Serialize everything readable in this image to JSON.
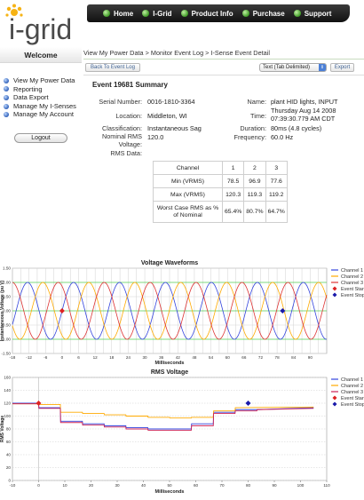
{
  "logo": {
    "text": "i-grid"
  },
  "nav": [
    "Home",
    "I-Grid",
    "Product Info",
    "Purchase",
    "Support"
  ],
  "sidebar": {
    "welcome": "Welcome",
    "items": [
      "View My Power Data",
      "Reporting",
      "Data Export",
      "Manage My I-Senses",
      "Manage My Account"
    ],
    "logout": "Logout"
  },
  "breadcrumb": "View My Power Data > Monitor Event Log > I-Sense Event Detail",
  "toolbar": {
    "back": "Back To Event Log",
    "format": "Text (Tab Delimited)",
    "export": "Export"
  },
  "summary": {
    "title": "Event 19681 Summary",
    "serial_label": "Serial Number:",
    "serial": "0016-1810-3364",
    "location_label": "Location:",
    "location": "Middleton, WI",
    "class_label": "Classification:",
    "classification": "Instantaneous Sag",
    "voltage_label": "Nominal RMS Voltage:",
    "voltage": "120.0",
    "name_label": "Name:",
    "name": "plant HID lights, INPUT",
    "time_label": "Time:",
    "time1": "Thursday Aug 14 2008",
    "time2": "07:39:30.779 AM CDT",
    "duration_label": "Duration:",
    "duration": "80ms (4.8 cycles)",
    "freq_label": "Frequency:",
    "frequency": "60.0 Hz",
    "rms_label": "RMS Data:"
  },
  "rms_table": {
    "header": [
      "Channel",
      "1",
      "2",
      "3"
    ],
    "rows": [
      [
        "Min (VRMS)",
        "78.5",
        "96.9",
        "77.6"
      ],
      [
        "Max (VRMS)",
        "120.3",
        "119.3",
        "119.2"
      ],
      [
        "Worst Case RMS as % of Nominal",
        "65.4%",
        "80.7%",
        "64.7%"
      ]
    ]
  },
  "chart_data": [
    {
      "type": "line",
      "title": "Voltage Waveforms",
      "xlabel": "Milliseconds",
      "ylabel": "Instantaneous Voltage (pu V)",
      "xlim": [
        -18,
        96
      ],
      "ylim": [
        -1.5,
        1.5
      ],
      "xticks": [
        -18,
        -12,
        -6,
        0,
        6,
        12,
        18,
        24,
        30,
        36,
        42,
        48,
        54,
        60,
        66,
        72,
        78,
        84,
        90
      ],
      "yticks": [
        "1.50",
        "1.00",
        "0.50",
        "0.00",
        "-0.50",
        "-1.00",
        "-1.50"
      ],
      "legend": [
        "Channel 1",
        "Channel 2",
        "Channel 3",
        "Event Start",
        "Event Stop"
      ],
      "colors": {
        "ch1": "#3344dd",
        "ch2": "#ffaa00",
        "ch3": "#dd3333",
        "start": "#dd2222",
        "stop": "#1a1aaa"
      },
      "frequency_hz": 60,
      "amplitude_pu": 1.0,
      "event_start": {
        "x": 0,
        "y": 0
      },
      "event_stop": {
        "x": 80,
        "y": 0
      }
    },
    {
      "type": "line",
      "title": "RMS Voltage",
      "xlabel": "Milliseconds",
      "ylabel": "RMS Voltage",
      "xlim": [
        -10,
        110
      ],
      "ylim": [
        0,
        160
      ],
      "xticks": [
        -10,
        0,
        10,
        20,
        30,
        40,
        50,
        60,
        70,
        80,
        90,
        100,
        110
      ],
      "yticks": [
        160,
        140,
        120,
        100,
        80,
        60,
        40,
        20,
        0
      ],
      "legend": [
        "Channel 1",
        "Channel 2",
        "Channel 3",
        "Event Start",
        "Event Stop"
      ],
      "series": [
        {
          "name": "Channel 1",
          "x": [
            -10,
            0,
            0.1,
            8.3,
            8.4,
            16.7,
            16.8,
            25,
            25.1,
            33.3,
            33.4,
            41.7,
            41.8,
            50,
            50.1,
            58.3,
            58.4,
            66.7,
            66.8,
            75,
            75.1,
            83.3,
            83.4,
            105
          ],
          "y": [
            120,
            120,
            113,
            113,
            92,
            92,
            88,
            88,
            85,
            85,
            82,
            82,
            80,
            80,
            80,
            80,
            88,
            88,
            106,
            106,
            110,
            110,
            110,
            113
          ]
        },
        {
          "name": "Channel 2",
          "x": [
            -10,
            0,
            0.1,
            8.3,
            8.4,
            16.7,
            16.8,
            25,
            25.1,
            33.3,
            33.4,
            41.7,
            41.8,
            50,
            50.1,
            58.3,
            58.4,
            66.7,
            66.8,
            75,
            75.1,
            105
          ],
          "y": [
            119,
            119,
            118,
            118,
            106,
            106,
            104,
            104,
            102,
            102,
            100,
            100,
            98,
            98,
            97,
            97,
            98,
            98,
            108,
            108,
            113,
            114
          ]
        },
        {
          "name": "Channel 3",
          "x": [
            -10,
            0,
            0.1,
            8.3,
            8.4,
            16.7,
            16.8,
            25,
            25.1,
            33.3,
            33.4,
            41.7,
            41.8,
            50,
            50.1,
            58.3,
            58.4,
            66.7,
            66.8,
            75,
            75.1,
            83.3,
            83.4,
            105
          ],
          "y": [
            119,
            119,
            112,
            112,
            90,
            90,
            86,
            86,
            83,
            83,
            80,
            80,
            78,
            78,
            78,
            78,
            85,
            85,
            104,
            104,
            108,
            108,
            110,
            112
          ]
        }
      ],
      "event_start": {
        "x": 0,
        "y": 120
      },
      "event_stop": {
        "x": 80,
        "y": 120
      },
      "colors": {
        "ch1": "#3344dd",
        "ch2": "#ffaa00",
        "ch3": "#cc2255",
        "start": "#dd2222",
        "stop": "#1a1aaa"
      }
    }
  ]
}
